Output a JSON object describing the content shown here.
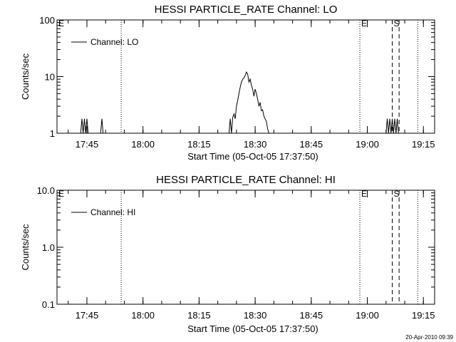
{
  "chart_data": [
    {
      "type": "line",
      "title": "HESSI PARTICLE_RATE Channel: LO",
      "xlabel": "Start Time (05-Oct-05 17:37:50)",
      "ylabel": "Counts/sec",
      "y_scale": "log",
      "ylim": [
        1,
        100
      ],
      "y_ticks": [
        "1",
        "10",
        "100"
      ],
      "xlim": [
        "17:37",
        "19:18"
      ],
      "x_ticks": [
        "17:45",
        "18:00",
        "18:15",
        "18:30",
        "18:45",
        "19:00",
        "19:15"
      ],
      "legend": {
        "position": "top-left",
        "entries": [
          "Channel: LO"
        ]
      },
      "series": [
        {
          "name": "Channel: LO",
          "x": [
            "17:43:20",
            "17:43:40",
            "17:44:00",
            "17:44:20",
            "17:44:40",
            "17:45:00",
            "17:45:20",
            "17:45:40",
            "17:48:40",
            "17:49:00",
            "17:49:20",
            "18:22:00",
            "18:23:00",
            "18:23:20",
            "18:23:40",
            "18:24:00",
            "18:24:20",
            "18:24:40",
            "18:25:00",
            "18:25:20",
            "18:25:40",
            "18:26:00",
            "18:26:20",
            "18:26:40",
            "18:27:00",
            "18:27:20",
            "18:27:40",
            "18:28:00",
            "18:28:20",
            "18:28:40",
            "18:29:00",
            "18:29:20",
            "18:29:40",
            "18:30:00",
            "18:30:20",
            "18:30:40",
            "18:31:00",
            "18:31:20",
            "18:31:40",
            "18:32:00",
            "18:32:20",
            "18:32:40",
            "18:33:00",
            "18:33:20",
            "18:33:40",
            "18:34:00",
            "19:05:00",
            "19:05:20",
            "19:05:40",
            "19:06:00",
            "19:06:20",
            "19:06:40",
            "19:07:00",
            "19:07:20",
            "19:07:40",
            "19:08:00",
            "19:08:20"
          ],
          "y": [
            1,
            1.8,
            1,
            1.8,
            1,
            1.8,
            1,
            1,
            1,
            1.8,
            1,
            1,
            1,
            1.8,
            1,
            1.9,
            2.2,
            1.8,
            3,
            3.8,
            5,
            6.5,
            8,
            9,
            9.5,
            10.5,
            12,
            11,
            8,
            9,
            7,
            6,
            4.5,
            6,
            5,
            4,
            3,
            3.5,
            2.5,
            2.6,
            2,
            1.8,
            1.6,
            1.2,
            1,
            1,
            1,
            1.8,
            1,
            1.8,
            1,
            1.8,
            1,
            1.8,
            1,
            1.8,
            1
          ]
        }
      ],
      "annotations": [
        {
          "type": "dotted_line",
          "x": "17:54:10"
        },
        {
          "type": "dotted_line",
          "x": "18:58:00",
          "label": "E"
        },
        {
          "type": "dashed_line",
          "x": "19:06:40",
          "label": "S"
        },
        {
          "type": "dashed_line",
          "x": "19:08:30"
        },
        {
          "type": "dotted_line",
          "x": "19:13:30"
        }
      ],
      "corner_labels": [
        "E"
      ]
    },
    {
      "type": "line",
      "title": "HESSI PARTICLE_RATE Channel: HI",
      "xlabel": "Start Time (05-Oct-05 17:37:50)",
      "ylabel": "Counts/sec",
      "y_scale": "log",
      "ylim": [
        0.1,
        10
      ],
      "y_ticks": [
        "0.1",
        "1.0",
        "10.0"
      ],
      "xlim": [
        "17:37",
        "19:18"
      ],
      "x_ticks": [
        "17:45",
        "18:00",
        "18:15",
        "18:30",
        "18:45",
        "19:00",
        "19:15"
      ],
      "legend": {
        "position": "top-left",
        "entries": [
          "Channel: HI"
        ]
      },
      "series": [
        {
          "name": "Channel: HI",
          "x": [],
          "y": []
        }
      ],
      "annotations": [
        {
          "type": "dotted_line",
          "x": "17:54:10"
        },
        {
          "type": "dotted_line",
          "x": "18:58:00",
          "label": "E"
        },
        {
          "type": "dashed_line",
          "x": "19:06:40",
          "label": "S"
        },
        {
          "type": "dashed_line",
          "x": "19:08:30"
        },
        {
          "type": "dotted_line",
          "x": "19:13:30"
        }
      ],
      "corner_labels": [
        "E"
      ]
    }
  ],
  "footer": {
    "timestamp": "20-Apr-2010 09:39"
  }
}
